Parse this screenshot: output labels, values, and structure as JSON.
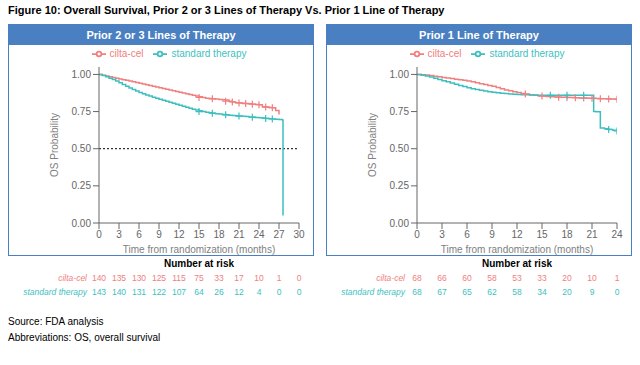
{
  "title": "Figure 10: Overall Survival, Prior 2 or 3 Lines of Therapy Vs. Prior 1 Line of Therapy",
  "annotations": [
    "Source: FDA analysis",
    "Abbreviations: OS, overall survival"
  ],
  "chart_data": [
    {
      "type": "line",
      "title": "Prior 2 or 3 Lines of Therapy",
      "xlabel": "Time from randomization (months)",
      "ylabel": "OS Probability",
      "xlim": [
        0,
        30
      ],
      "xticks": [
        0,
        3,
        6,
        9,
        12,
        15,
        18,
        21,
        24,
        27,
        30
      ],
      "ylim": [
        0,
        1.05
      ],
      "yticks": [
        {
          "value": 0,
          "label": "0.00"
        },
        {
          "value": 0.25,
          "label": "0.25"
        },
        {
          "value": 0.5,
          "label": "0.50"
        },
        {
          "value": 0.75,
          "label": "0.75"
        },
        {
          "value": 1,
          "label": "1.00"
        }
      ],
      "grid": false,
      "legend": "top",
      "reference_line_y": 0.5,
      "series": [
        {
          "name": "cilta-cel",
          "color": "#F08080",
          "line_style": "step",
          "marker": "+",
          "x": [
            0,
            0.5,
            1,
            1.5,
            2,
            2.5,
            3,
            3.5,
            4,
            4.5,
            5,
            5.5,
            6,
            6.5,
            7,
            7.5,
            8,
            8.5,
            9,
            9.5,
            10,
            10.5,
            11,
            11.5,
            12,
            12.5,
            13,
            13.5,
            14,
            14.5,
            15,
            15.5,
            16,
            16.5,
            17,
            17.5,
            18,
            18.5,
            19,
            19.5,
            20,
            20.5,
            21,
            21.5,
            22,
            22.5,
            23,
            23.5,
            24,
            24.5,
            25,
            25.5,
            26,
            26.5,
            27
          ],
          "values": [
            1.0,
            0.995,
            0.99,
            0.985,
            0.98,
            0.975,
            0.97,
            0.965,
            0.96,
            0.955,
            0.95,
            0.945,
            0.94,
            0.935,
            0.93,
            0.925,
            0.92,
            0.915,
            0.91,
            0.905,
            0.9,
            0.895,
            0.89,
            0.885,
            0.88,
            0.875,
            0.87,
            0.865,
            0.86,
            0.855,
            0.85,
            0.845,
            0.84,
            0.838,
            0.836,
            0.834,
            0.832,
            0.83,
            0.828,
            0.82,
            0.815,
            0.81,
            0.808,
            0.806,
            0.804,
            0.802,
            0.8,
            0.798,
            0.796,
            0.782,
            0.78,
            0.778,
            0.776,
            0.758,
            0.73
          ],
          "censored_x": [
            15,
            17,
            19,
            20,
            21,
            22,
            23,
            24,
            25,
            26
          ],
          "censored_values": [
            0.845,
            0.836,
            0.82,
            0.815,
            0.808,
            0.804,
            0.8,
            0.796,
            0.78,
            0.776
          ]
        },
        {
          "name": "standard therapy",
          "color": "#3DBFBF",
          "line_style": "step",
          "marker": "+",
          "x": [
            0,
            0.5,
            1,
            1.5,
            2,
            2.5,
            3,
            3.5,
            4,
            4.5,
            5,
            5.5,
            6,
            6.5,
            7,
            7.5,
            8,
            8.5,
            9,
            9.5,
            10,
            10.5,
            11,
            11.5,
            12,
            12.5,
            13,
            13.5,
            14,
            14.5,
            15,
            15.5,
            16,
            16.5,
            17,
            17.5,
            18,
            18.5,
            19,
            19.5,
            20,
            20.5,
            21,
            21.5,
            22,
            22.5,
            23,
            23.5,
            24,
            24.5,
            25,
            25.5,
            26,
            26.5,
            27,
            27.5,
            27.6
          ],
          "values": [
            1.0,
            0.992,
            0.984,
            0.975,
            0.966,
            0.955,
            0.944,
            0.932,
            0.92,
            0.909,
            0.898,
            0.888,
            0.878,
            0.87,
            0.862,
            0.854,
            0.847,
            0.84,
            0.833,
            0.826,
            0.82,
            0.813,
            0.806,
            0.8,
            0.793,
            0.786,
            0.779,
            0.772,
            0.765,
            0.76,
            0.755,
            0.75,
            0.745,
            0.742,
            0.739,
            0.736,
            0.733,
            0.73,
            0.728,
            0.726,
            0.724,
            0.722,
            0.72,
            0.718,
            0.716,
            0.714,
            0.712,
            0.71,
            0.708,
            0.706,
            0.704,
            0.702,
            0.7,
            0.698,
            0.696,
            0.694,
            0.05
          ],
          "censored_x": [
            15,
            17,
            19,
            21,
            23,
            25,
            26
          ],
          "censored_values": [
            0.75,
            0.739,
            0.728,
            0.72,
            0.712,
            0.704,
            0.7
          ]
        }
      ],
      "at_risk": {
        "title": "Number at risk",
        "x": [
          0,
          3,
          6,
          9,
          12,
          15,
          18,
          21,
          24,
          27,
          30
        ],
        "rows": [
          {
            "name": "cilta-cel",
            "color": "#F08080",
            "values": [
              140,
              135,
              130,
              125,
              115,
              75,
              33,
              17,
              10,
              1,
              0
            ]
          },
          {
            "name": "standard therapy",
            "color": "#3DBFBF",
            "values": [
              143,
              140,
              131,
              122,
              107,
              64,
              26,
              12,
              4,
              0,
              0
            ]
          }
        ]
      }
    },
    {
      "type": "line",
      "title": "Prior 1 Line of Therapy",
      "xlabel": "Time from randomization (months)",
      "ylabel": "OS Probability",
      "xlim": [
        0,
        24
      ],
      "xticks": [
        0,
        3,
        6,
        9,
        12,
        15,
        18,
        21,
        24
      ],
      "ylim": [
        0,
        1.05
      ],
      "yticks": [
        {
          "value": 0,
          "label": "0.00"
        },
        {
          "value": 0.25,
          "label": "0.25"
        },
        {
          "value": 0.5,
          "label": "0.50"
        },
        {
          "value": 0.75,
          "label": "0.75"
        },
        {
          "value": 1,
          "label": "1.00"
        }
      ],
      "grid": false,
      "legend": "top",
      "series": [
        {
          "name": "cilta-cel",
          "color": "#F08080",
          "line_style": "step",
          "marker": "+",
          "x": [
            0,
            0.5,
            1,
            1.5,
            2,
            2.5,
            3,
            3.5,
            4,
            4.5,
            5,
            5.5,
            6,
            6.5,
            7,
            7.5,
            8,
            8.5,
            9,
            9.5,
            10,
            10.5,
            11,
            11.5,
            12,
            12.5,
            13,
            13.5,
            14,
            14.5,
            15,
            15.5,
            16,
            16.5,
            17,
            17.5,
            18,
            18.5,
            19,
            19.5,
            20,
            20.5,
            21,
            21.5,
            22,
            22.5,
            23,
            23.5,
            24
          ],
          "values": [
            1.0,
            0.998,
            0.996,
            0.992,
            0.988,
            0.984,
            0.98,
            0.976,
            0.972,
            0.968,
            0.964,
            0.96,
            0.956,
            0.95,
            0.944,
            0.938,
            0.932,
            0.926,
            0.92,
            0.912,
            0.904,
            0.896,
            0.89,
            0.884,
            0.878,
            0.872,
            0.868,
            0.864,
            0.86,
            0.857,
            0.854,
            0.852,
            0.85,
            0.848,
            0.847,
            0.846,
            0.845,
            0.844,
            0.843,
            0.842,
            0.841,
            0.84,
            0.839,
            0.838,
            0.837,
            0.836,
            0.835,
            0.834,
            0.833
          ],
          "censored_x": [
            13,
            15,
            17,
            18,
            19,
            20,
            21,
            22,
            23,
            24
          ],
          "censored_values": [
            0.868,
            0.854,
            0.847,
            0.845,
            0.843,
            0.841,
            0.839,
            0.837,
            0.835,
            0.833
          ]
        },
        {
          "name": "standard therapy",
          "color": "#3DBFBF",
          "line_style": "step",
          "marker": "+",
          "x": [
            0,
            0.5,
            1,
            1.5,
            2,
            2.5,
            3,
            3.5,
            4,
            4.5,
            5,
            5.5,
            6,
            6.5,
            7,
            7.5,
            8,
            8.5,
            9,
            9.5,
            10,
            10.5,
            11,
            11.5,
            12,
            12.5,
            13,
            13.5,
            14,
            14.5,
            15,
            15.5,
            16,
            16.5,
            17,
            17.5,
            18,
            18.5,
            19,
            19.5,
            20,
            20.5,
            21,
            21.2,
            21.5,
            22,
            22.5,
            23,
            23.5,
            24
          ],
          "values": [
            1.0,
            0.995,
            0.99,
            0.982,
            0.974,
            0.966,
            0.958,
            0.95,
            0.942,
            0.934,
            0.926,
            0.918,
            0.91,
            0.904,
            0.898,
            0.893,
            0.888,
            0.884,
            0.88,
            0.876,
            0.873,
            0.871,
            0.869,
            0.867,
            0.865,
            0.864,
            0.863,
            0.862,
            0.861,
            0.86,
            0.86,
            0.86,
            0.86,
            0.86,
            0.86,
            0.86,
            0.86,
            0.86,
            0.86,
            0.86,
            0.86,
            0.86,
            0.86,
            0.75,
            0.748,
            0.64,
            0.635,
            0.63,
            0.625,
            0.62
          ],
          "censored_x": [
            16,
            18,
            20,
            23,
            24
          ],
          "censored_values": [
            0.86,
            0.86,
            0.86,
            0.63,
            0.62
          ]
        }
      ],
      "at_risk": {
        "title": "Number at risk",
        "x": [
          0,
          3,
          6,
          9,
          12,
          15,
          18,
          21,
          24
        ],
        "rows": [
          {
            "name": "cilta-cel",
            "color": "#F08080",
            "values": [
              68,
              66,
              60,
              58,
              53,
              33,
              20,
              10,
              1
            ]
          },
          {
            "name": "standard therapy",
            "color": "#3DBFBF",
            "values": [
              68,
              67,
              65,
              62,
              58,
              34,
              20,
              9,
              0
            ]
          }
        ]
      }
    }
  ]
}
